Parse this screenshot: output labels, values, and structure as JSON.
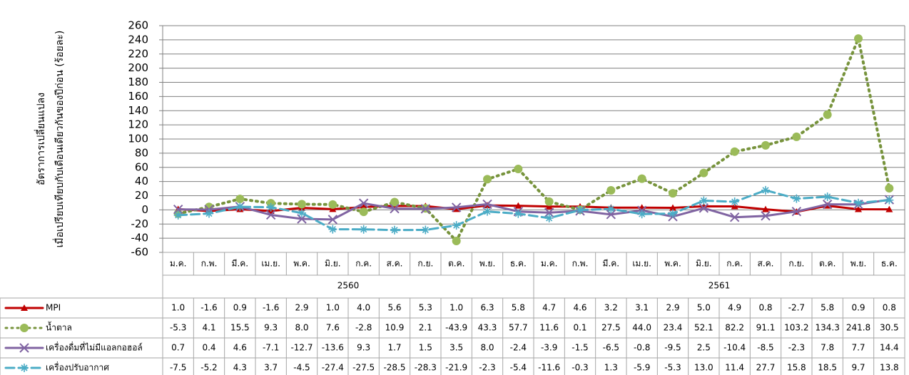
{
  "chart_data": {
    "type": "line",
    "y_label_lines": [
      "อัตราการเปลี่ยนแปลง",
      "เมื่อเปรียบเทียบกับเดือนเดียวกันของปีก่อน  (ร้อยละ)"
    ],
    "categories": [
      "ม.ค.",
      "ก.พ.",
      "มี.ค.",
      "เม.ย.",
      "พ.ค.",
      "มิ.ย.",
      "ก.ค.",
      "ส.ค.",
      "ก.ย.",
      "ต.ค.",
      "พ.ย.",
      "ธ.ค.",
      "ม.ค.",
      "ก.พ.",
      "มี.ค.",
      "เม.ย.",
      "พ.ค.",
      "มิ.ย.",
      "ก.ค.",
      "ส.ค.",
      "ก.ย.",
      "ต.ค.",
      "พ.ย.",
      "ธ.ค."
    ],
    "year_groups": [
      "2560",
      "2561"
    ],
    "ylim": [
      -60,
      260
    ],
    "yticks": [
      -60,
      -40,
      -20,
      0,
      20,
      40,
      60,
      80,
      100,
      120,
      140,
      160,
      180,
      200,
      220,
      240,
      260
    ],
    "grid": true,
    "series": [
      {
        "name": "MPI",
        "color": "#c00000",
        "marker": "triangle",
        "dash": "solid",
        "values": [
          1.0,
          -1.6,
          0.9,
          -1.6,
          2.9,
          1.0,
          4.0,
          5.6,
          5.3,
          1.0,
          6.3,
          5.8,
          4.7,
          4.6,
          3.2,
          3.1,
          2.9,
          5.0,
          4.9,
          0.8,
          -2.7,
          5.8,
          0.9,
          0.8
        ],
        "value_labels": [
          "1.0",
          "-1.6",
          "0.9",
          "-1.6",
          "2.9",
          "1.0",
          "4.0",
          "5.6",
          "5.3",
          "1.0",
          "6.3",
          "5.8",
          "4.7",
          "4.6",
          "3.2",
          "3.1",
          "2.9",
          "5.0",
          "4.9",
          "0.8",
          "-2.7",
          "5.8",
          "0.9",
          "0.8"
        ]
      },
      {
        "name": "น้ำตาล",
        "color": "#9bbb59",
        "marker": "circle",
        "dash": "dot",
        "values": [
          -5.3,
          4.1,
          15.5,
          9.3,
          8.0,
          7.6,
          -2.8,
          10.9,
          2.1,
          -43.9,
          43.3,
          57.7,
          11.6,
          0.1,
          27.5,
          44.0,
          23.4,
          52.1,
          82.2,
          91.1,
          103.2,
          134.3,
          241.8,
          30.5
        ],
        "value_labels": [
          "-5.3",
          "4.1",
          "15.5",
          "9.3",
          "8.0",
          "7.6",
          "-2.8",
          "10.9",
          "2.1",
          "-43.9",
          "43.3",
          "57.7",
          "11.6",
          "0.1",
          "27.5",
          "44.0",
          "23.4",
          "52.1",
          "82.2",
          "91.1",
          "103.2",
          "134.3",
          "241.8",
          "30.5"
        ]
      },
      {
        "name": "เครื่องดื่มที่ไม่มีแอลกอฮอล์",
        "color": "#8064a2",
        "marker": "x",
        "dash": "solid",
        "values": [
          0.7,
          0.4,
          4.6,
          -7.1,
          -12.7,
          -13.6,
          9.3,
          1.7,
          1.5,
          3.5,
          8.0,
          -2.4,
          -3.9,
          -1.5,
          -6.5,
          -0.8,
          -9.5,
          2.5,
          -10.4,
          -8.5,
          -2.3,
          7.8,
          7.7,
          14.4
        ],
        "value_labels": [
          "0.7",
          "0.4",
          "4.6",
          "-7.1",
          "-12.7",
          "-13.6",
          "9.3",
          "1.7",
          "1.5",
          "3.5",
          "8.0",
          "-2.4",
          "-3.9",
          "-1.5",
          "-6.5",
          "-0.8",
          "-9.5",
          "2.5",
          "-10.4",
          "-8.5",
          "-2.3",
          "7.8",
          "7.7",
          "14.4"
        ]
      },
      {
        "name": "เครื่องปรับอากาศ",
        "color": "#4bacc6",
        "marker": "star",
        "dash": "dash",
        "values": [
          -7.5,
          -5.2,
          4.3,
          3.7,
          -4.5,
          -27.4,
          -27.5,
          -28.5,
          -28.3,
          -21.9,
          -2.3,
          -5.4,
          -11.6,
          -0.3,
          1.3,
          -5.9,
          -5.3,
          13.0,
          11.4,
          27.7,
          15.8,
          18.5,
          9.7,
          13.8
        ],
        "value_labels": [
          "-7.5",
          "-5.2",
          "4.3",
          "3.7",
          "-4.5",
          "-27.4",
          "-27.5",
          "-28.5",
          "-28.3",
          "-21.9",
          "-2.3",
          "-5.4",
          "-11.6",
          "-0.3",
          "1.3",
          "-5.9",
          "-5.3",
          "13.0",
          "11.4",
          "27.7",
          "15.8",
          "18.5",
          "9.7",
          "13.8"
        ]
      }
    ]
  }
}
